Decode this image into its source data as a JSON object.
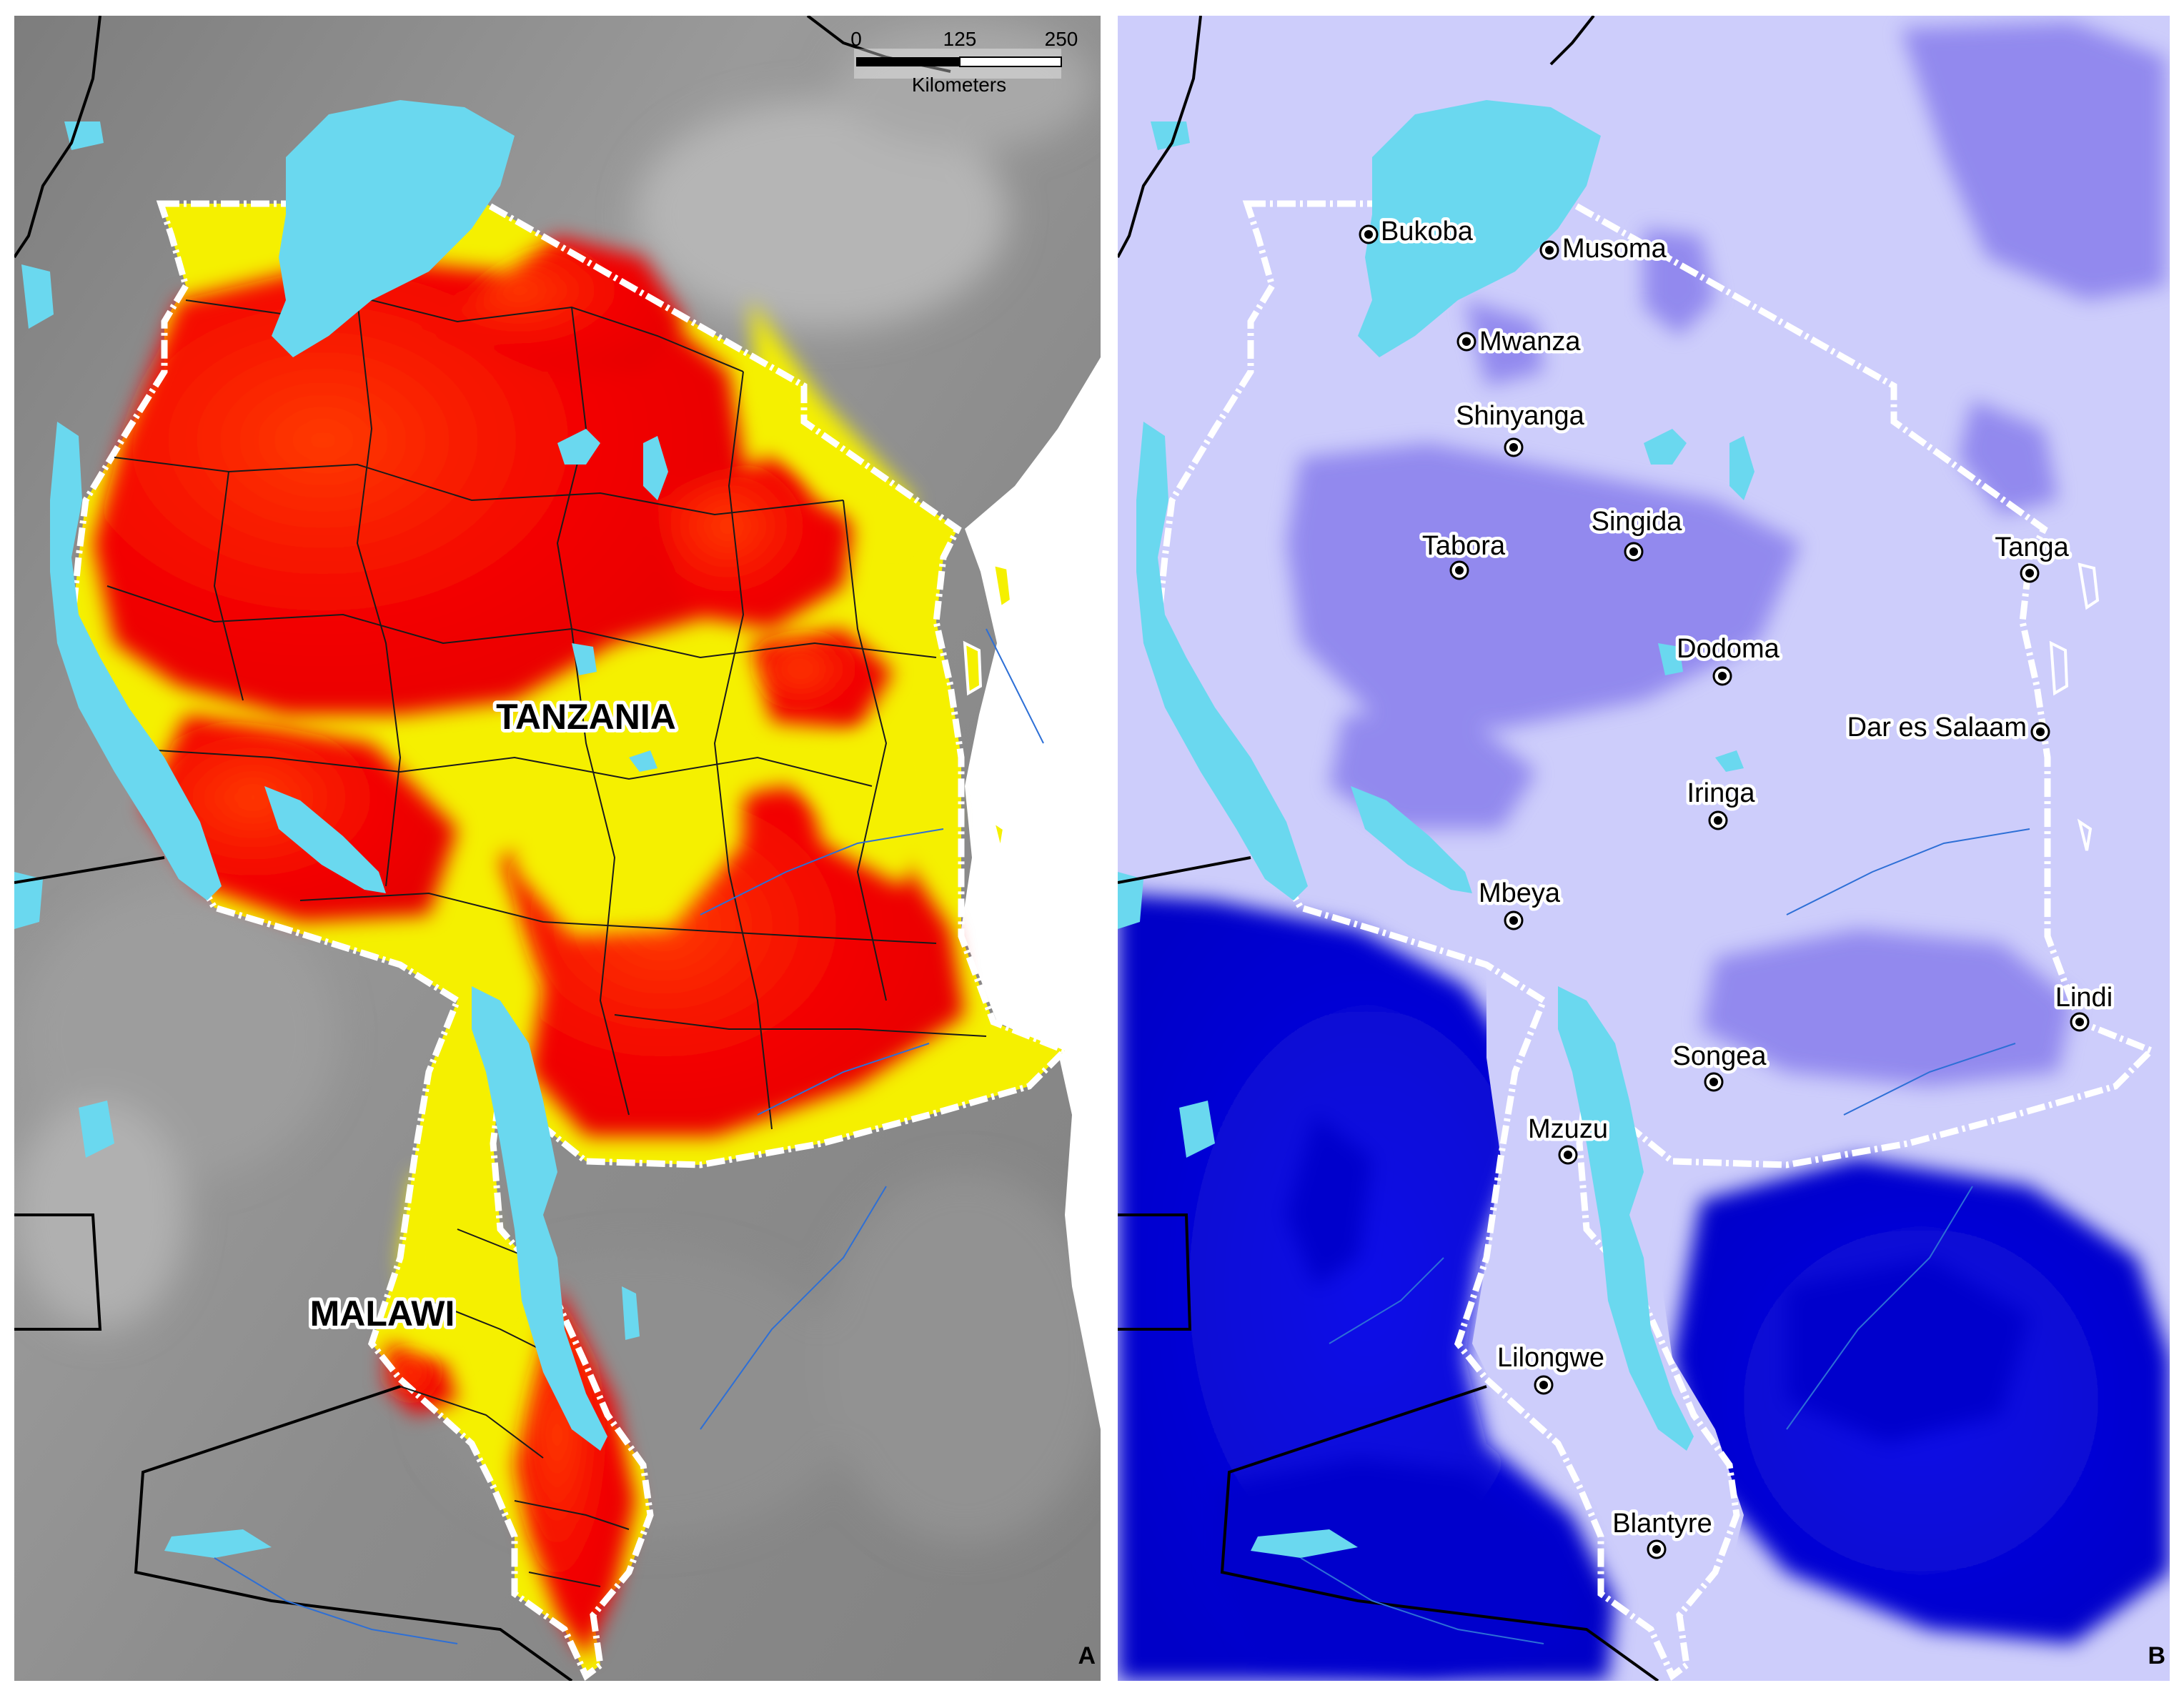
{
  "panels": [
    {
      "id": "A",
      "letter": "A",
      "countries": [
        "TANZANIA",
        "MALAWI"
      ],
      "scale_bar": {
        "ticks": [
          "0",
          "125",
          "250"
        ],
        "unit": "Kilometers"
      },
      "colors": {
        "background": "#8a8a8a",
        "high": "#f20000",
        "low": "#f5f000",
        "water": "#6ad8ef"
      }
    },
    {
      "id": "B",
      "letter": "B",
      "cities": [
        "Bukoba",
        "Musoma",
        "Mwanza",
        "Shinyanga",
        "Singida",
        "Tabora",
        "Tanga",
        "Dodoma",
        "Dar es Salaam",
        "Iringa",
        "Mbeya",
        "Lindi",
        "Songea",
        "Mzuzu",
        "Lilongwe",
        "Blantyre"
      ],
      "colors": {
        "background": "#cdcdfb",
        "medium": "#8f86ee",
        "high": "#2020e0",
        "max": "#0000cc",
        "water": "#6ad8ef"
      }
    }
  ]
}
